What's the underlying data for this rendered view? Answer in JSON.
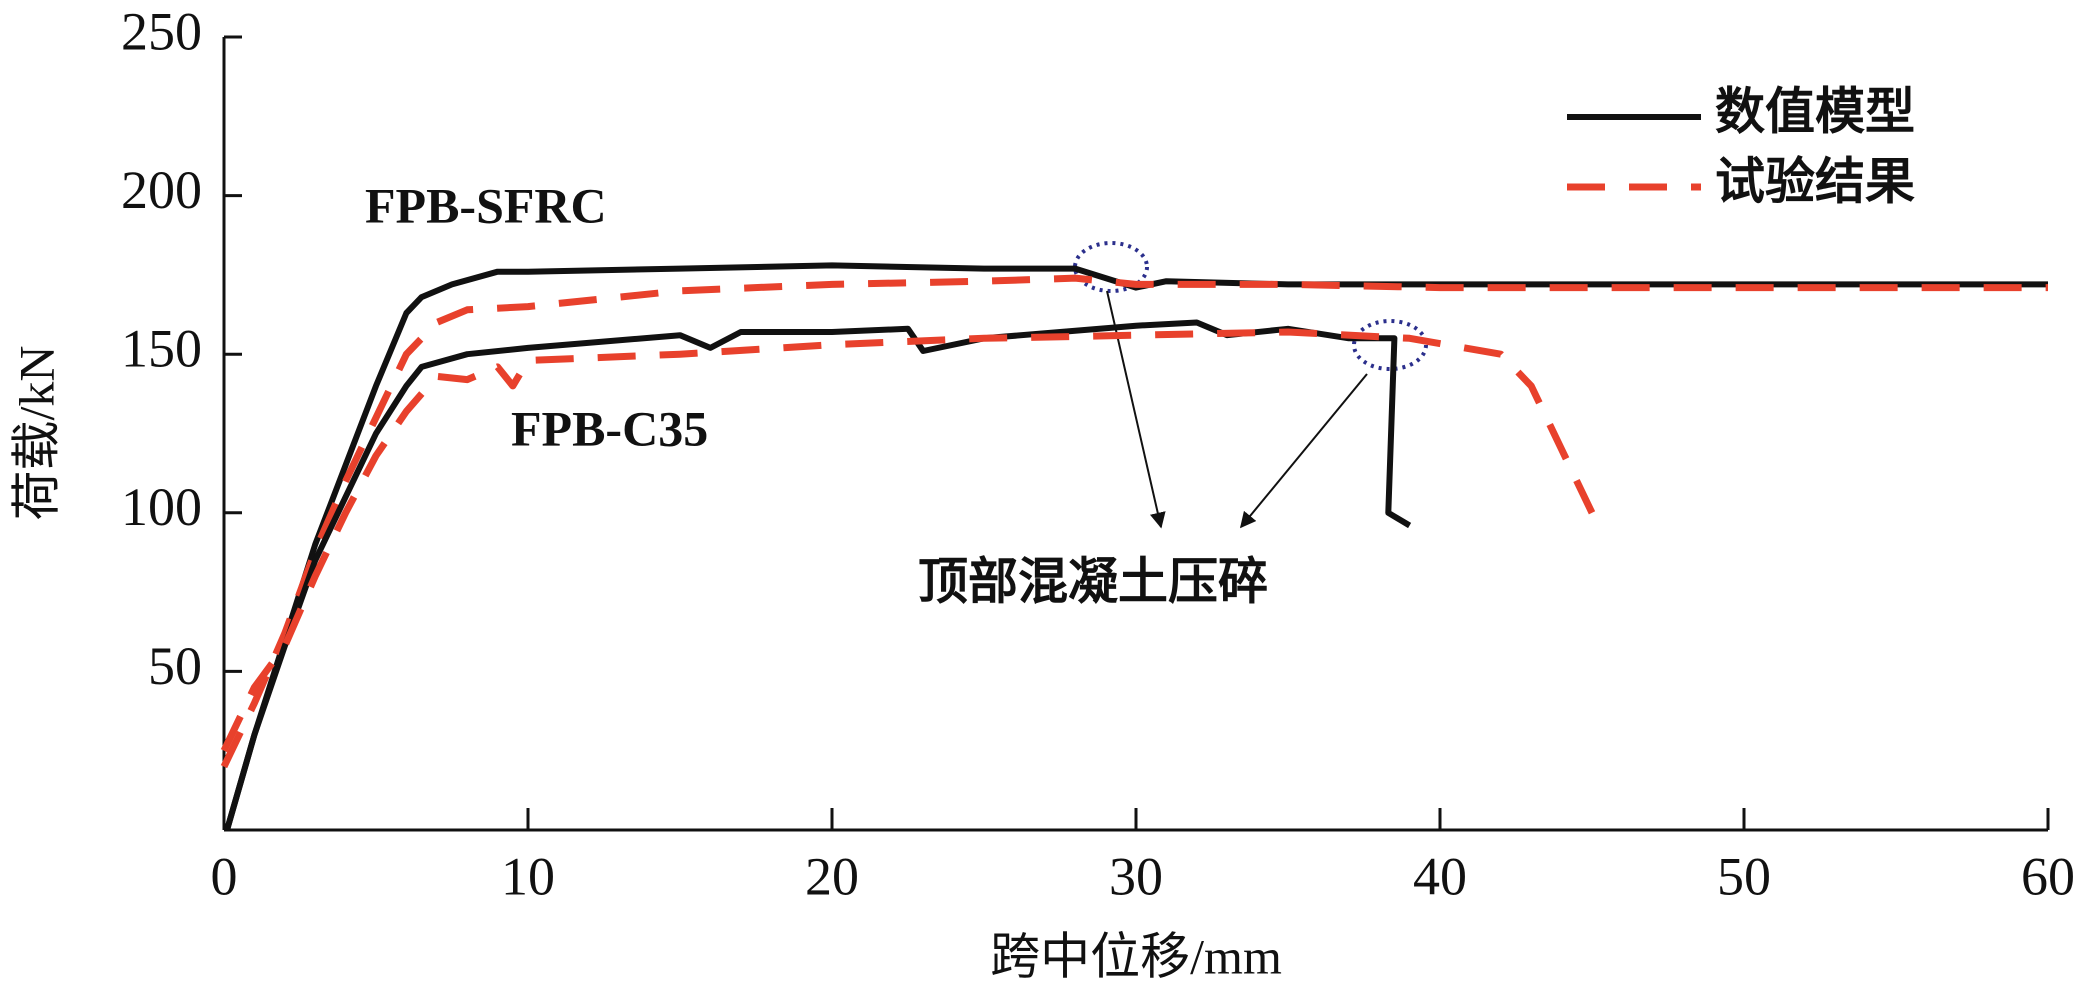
{
  "chart_data": {
    "type": "line",
    "xlabel": "跨中位移/mm",
    "ylabel": "荷载/kN",
    "xlim": [
      0,
      60
    ],
    "ylim": [
      0,
      250
    ],
    "xticks": [
      0,
      10,
      20,
      30,
      40,
      50,
      60
    ],
    "yticks": [
      50,
      100,
      150,
      200,
      250
    ],
    "legend": "upper right",
    "annotations": [
      "FPB-SFRC",
      "FPB-C35",
      "顶部混凝土压碎"
    ],
    "series": [
      {
        "name": "数值模型",
        "color": "#111111",
        "dashed": false,
        "x": [
          0.1,
          1,
          2,
          3,
          4,
          5,
          6,
          6.5,
          7.5,
          9,
          10,
          15,
          20,
          25,
          28,
          29,
          30,
          31,
          35,
          40,
          50,
          60
        ],
        "values": [
          0,
          30,
          60,
          90,
          115,
          140,
          163,
          168,
          172,
          176,
          176,
          177,
          178,
          177,
          177,
          174,
          171,
          173,
          172,
          172,
          172,
          172
        ]
      },
      {
        "name": "试验结果",
        "color": "#e8412c",
        "dashed": true,
        "x": [
          0,
          1,
          2,
          3,
          4,
          5,
          6,
          7,
          8,
          10,
          15,
          20,
          25,
          28,
          30,
          35,
          40,
          50,
          60
        ],
        "values": [
          20,
          40,
          62,
          88,
          110,
          130,
          150,
          160,
          164,
          165,
          170,
          172,
          173,
          174,
          172,
          172,
          171,
          171,
          171
        ]
      },
      {
        "color": "#111111",
        "dashed": false,
        "x": [
          0.1,
          1,
          2,
          3,
          4,
          5,
          6,
          6.5,
          8,
          10,
          15,
          16,
          17,
          20,
          22.5,
          23,
          25,
          30,
          32,
          33,
          35,
          37,
          38.5,
          38.3,
          39
        ],
        "values": [
          0,
          30,
          58,
          85,
          105,
          125,
          140,
          146,
          150,
          152,
          156,
          152,
          157,
          157,
          158,
          151,
          155,
          159,
          160,
          156,
          158,
          155,
          155,
          100,
          96
        ]
      },
      {
        "color": "#e8412c",
        "dashed": true,
        "x": [
          0,
          1,
          2,
          3,
          4,
          5,
          6,
          7,
          8,
          9,
          9.5,
          10,
          15,
          20,
          25,
          30,
          35,
          39,
          42,
          43,
          44,
          45
        ],
        "values": [
          25,
          45,
          58,
          80,
          100,
          118,
          132,
          143,
          142,
          146,
          140,
          148,
          150,
          153,
          155,
          156,
          157,
          155,
          150,
          140,
          120,
          100
        ]
      }
    ]
  }
}
